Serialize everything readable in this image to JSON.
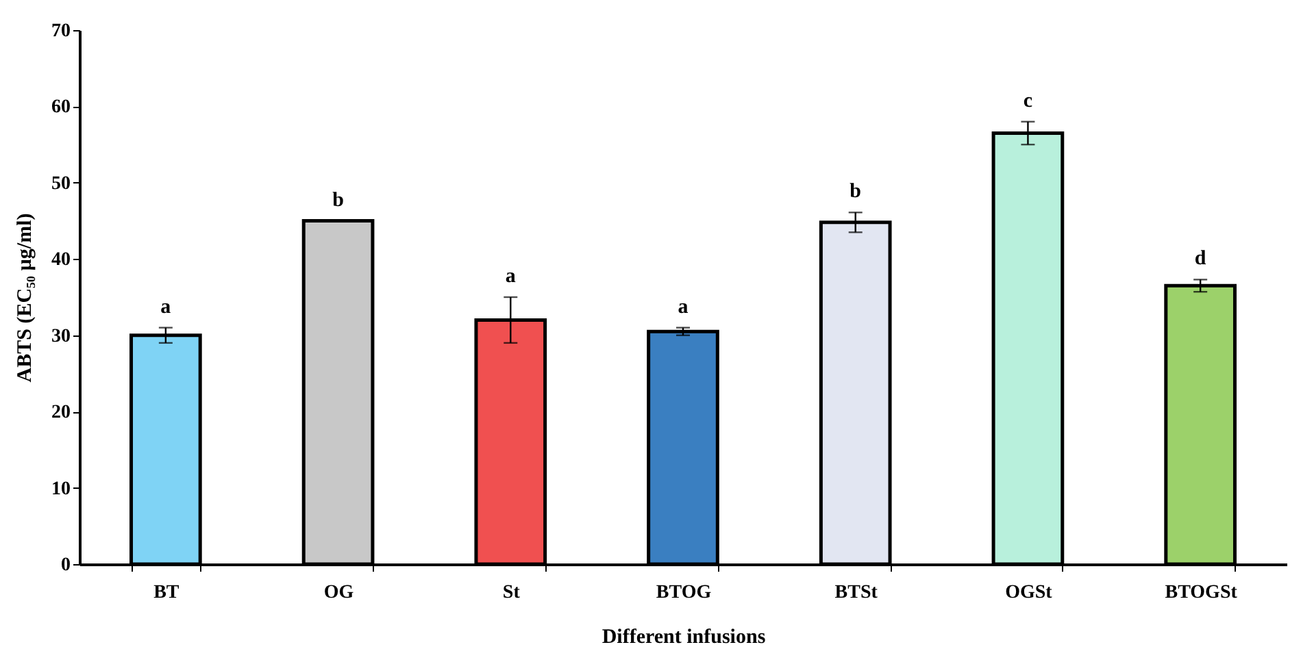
{
  "chart_data": {
    "type": "bar",
    "xlabel": "Different infusions",
    "ylabel": "ABTS (EC₅₀  µg/ml)",
    "categories": [
      "BT",
      "OG",
      "St",
      "BTOG",
      "BTSt",
      "OGSt",
      "BTOGSt"
    ],
    "values": [
      30.0,
      45.0,
      32.0,
      30.5,
      44.8,
      56.5,
      36.5
    ],
    "errors": [
      1.0,
      null,
      3.0,
      0.5,
      1.3,
      1.5,
      0.8
    ],
    "colors": [
      "#7fd3f5",
      "#c8c8c8",
      "#f05050",
      "#3a7fc1",
      "#e2e6f2",
      "#b8f0dc",
      "#9cd16a"
    ],
    "ylim": [
      0,
      70
    ],
    "yticks": [
      0,
      10,
      20,
      30,
      40,
      50,
      60,
      70
    ],
    "grid": false,
    "annotations": [
      {
        "text": "a",
        "x": "BT",
        "y": 31.0
      },
      {
        "text": "b",
        "x": "OG",
        "y": 45.0
      },
      {
        "text": "a",
        "x": "St",
        "y": 35.0
      },
      {
        "text": "a",
        "x": "BTOG",
        "y": 31.0
      },
      {
        "text": "b",
        "x": "BTSt",
        "y": 46.1
      },
      {
        "text": "c",
        "x": "OGSt",
        "y": 58.0
      },
      {
        "text": "d",
        "x": "BTOGSt",
        "y": 37.3
      }
    ]
  }
}
